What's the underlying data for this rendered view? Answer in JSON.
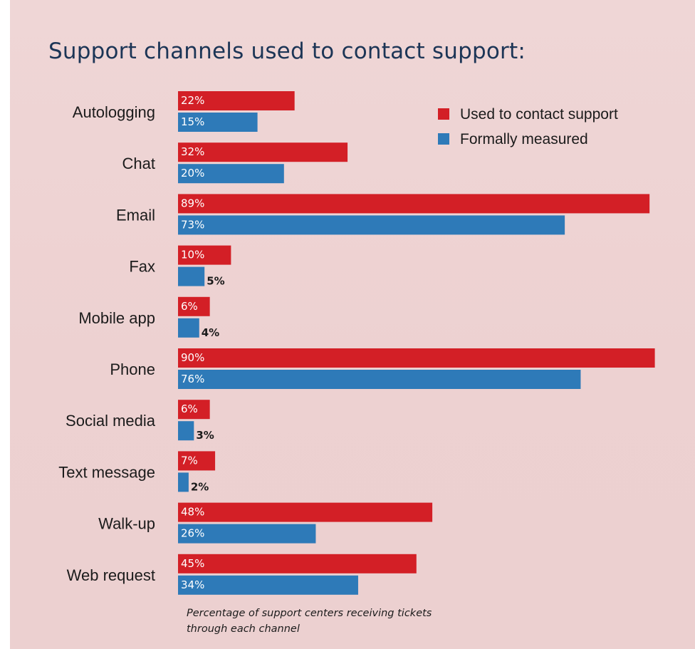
{
  "chart_data": {
    "type": "bar",
    "orientation": "horizontal",
    "title": "Support channels used to contact support:",
    "caption": "Percentage of support centers receiving tickets through each channel",
    "categories": [
      "Autologging",
      "Chat",
      "Email",
      "Fax",
      "Mobile app",
      "Phone",
      "Social media",
      "Text message",
      "Walk-up",
      "Web request"
    ],
    "series": [
      {
        "name": "Used to contact support",
        "color": "#d31f26",
        "values": [
          22,
          32,
          89,
          10,
          6,
          90,
          6,
          7,
          48,
          45
        ],
        "labels": [
          "22%",
          "32%",
          "89%",
          "10%",
          "6%",
          "90%",
          "6%",
          "7%",
          "48%",
          "45%"
        ]
      },
      {
        "name": "Formally measured",
        "color": "#2e7ab8",
        "values": [
          15,
          20,
          73,
          5,
          4,
          76,
          3,
          2,
          26,
          34
        ],
        "labels": [
          "15%",
          "20%",
          "73%",
          "5%",
          "4%",
          "76%",
          "3%",
          "2%",
          "26%",
          "34%"
        ]
      }
    ],
    "legend_position": "top-right",
    "xlim": [
      0,
      90
    ],
    "grid": false
  }
}
